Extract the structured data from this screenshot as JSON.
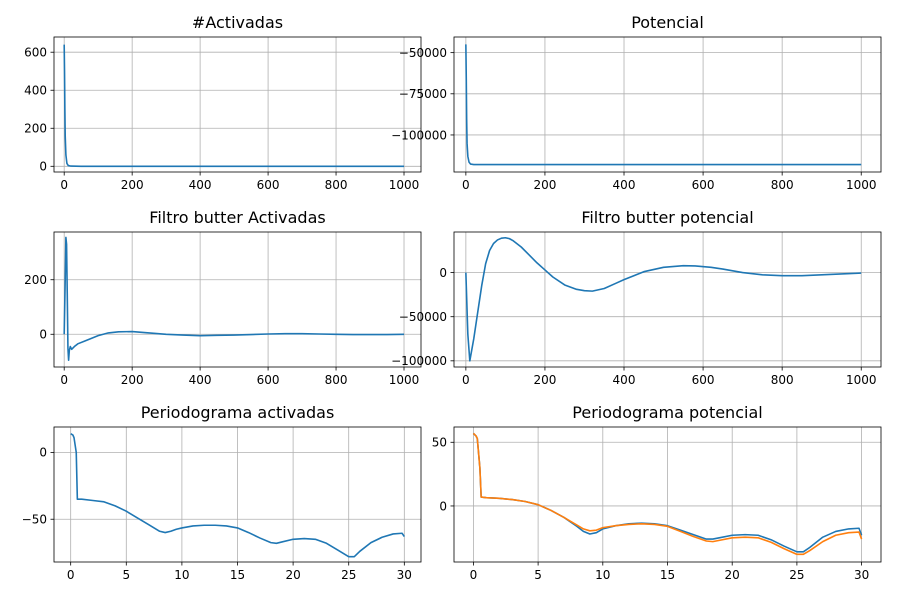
{
  "chart_data": [
    {
      "type": "line",
      "title": "#Activadas",
      "xlim": [
        -30,
        1050
      ],
      "ylim": [
        -30,
        680
      ],
      "xticks": [
        0,
        200,
        400,
        600,
        800,
        1000
      ],
      "xtick_labels": [
        "0",
        "200",
        "400",
        "600",
        "800",
        "1000"
      ],
      "yticks": [
        0,
        200,
        400,
        600
      ],
      "ytick_labels": [
        "0",
        "200",
        "400",
        "600"
      ],
      "grid": true,
      "series": [
        {
          "color": "#1f77b4",
          "x": [
            0,
            1,
            2,
            3,
            5,
            8,
            12,
            20,
            50,
            100,
            1000
          ],
          "y": [
            640,
            500,
            300,
            160,
            60,
            15,
            4,
            1,
            0,
            0,
            0
          ]
        }
      ]
    },
    {
      "type": "line",
      "title": "Potencial",
      "xlim": [
        -30,
        1050
      ],
      "ylim": [
        -122500,
        -40500
      ],
      "xticks": [
        0,
        200,
        400,
        600,
        800,
        1000
      ],
      "xtick_labels": [
        "0",
        "200",
        "400",
        "600",
        "800",
        "1000"
      ],
      "yticks": [
        -50000,
        -75000,
        -100000
      ],
      "ytick_labels": [
        "−50000",
        "−75000",
        "−100000"
      ],
      "grid": true,
      "series": [
        {
          "color": "#1f77b4",
          "x": [
            0,
            1,
            2,
            3,
            5,
            8,
            12,
            20,
            50,
            100,
            1000
          ],
          "y": [
            -45000,
            -65000,
            -90000,
            -105000,
            -113000,
            -116500,
            -117700,
            -118000,
            -118000,
            -118000,
            -118000
          ]
        }
      ]
    },
    {
      "type": "line",
      "title": "Filtro butter Activadas",
      "xlim": [
        -30,
        1050
      ],
      "ylim": [
        -120,
        375
      ],
      "xticks": [
        0,
        200,
        400,
        600,
        800,
        1000
      ],
      "xtick_labels": [
        "0",
        "200",
        "400",
        "600",
        "800",
        "1000"
      ],
      "yticks": [
        0,
        200
      ],
      "ytick_labels": [
        "0",
        "200"
      ],
      "grid": true,
      "series": [
        {
          "color": "#1f77b4",
          "x": [
            0,
            3,
            5,
            7,
            9,
            11,
            13,
            15,
            18,
            22,
            30,
            40,
            60,
            80,
            100,
            130,
            160,
            200,
            250,
            300,
            350,
            400,
            450,
            500,
            550,
            600,
            650,
            700,
            750,
            800,
            850,
            900,
            950,
            1000
          ],
          "y": [
            0,
            200,
            355,
            330,
            150,
            -50,
            -95,
            -60,
            -45,
            -55,
            -45,
            -35,
            -25,
            -15,
            -5,
            5,
            9,
            10,
            5,
            0,
            -3,
            -5,
            -4,
            -3,
            -1,
            1,
            2,
            2,
            1,
            0,
            -1,
            -1,
            -1,
            0
          ]
        }
      ]
    },
    {
      "type": "line",
      "title": "Filtro butter potencial",
      "xlim": [
        -30,
        1050
      ],
      "ylim": [
        -107000,
        46000
      ],
      "xticks": [
        0,
        200,
        400,
        600,
        800,
        1000
      ],
      "xtick_labels": [
        "0",
        "200",
        "400",
        "600",
        "800",
        "1000"
      ],
      "yticks": [
        0,
        -50000,
        -100000
      ],
      "ytick_labels": [
        "0",
        "−50000",
        "−100000"
      ],
      "grid": true,
      "series": [
        {
          "color": "#1f77b4",
          "x": [
            0,
            5,
            10,
            20,
            30,
            40,
            50,
            60,
            70,
            80,
            90,
            100,
            110,
            120,
            140,
            160,
            180,
            200,
            220,
            250,
            280,
            300,
            320,
            350,
            380,
            400,
            450,
            500,
            550,
            580,
            620,
            650,
            700,
            750,
            800,
            850,
            900,
            950,
            1000
          ],
          "y": [
            0,
            -70000,
            -100000,
            -75000,
            -45000,
            -15000,
            10000,
            25000,
            33000,
            37000,
            39000,
            39500,
            38500,
            36000,
            29000,
            20000,
            11000,
            3000,
            -5000,
            -14000,
            -19000,
            -20500,
            -21000,
            -18000,
            -12000,
            -8000,
            1000,
            6000,
            7800,
            7500,
            6000,
            4000,
            0,
            -2500,
            -3500,
            -3500,
            -2500,
            -1500,
            -500
          ]
        }
      ]
    },
    {
      "type": "line",
      "title": "Periodograma activadas",
      "xlim": [
        -1.5,
        31.5
      ],
      "ylim": [
        -82,
        19
      ],
      "xticks": [
        0,
        5,
        10,
        15,
        20,
        25,
        30
      ],
      "xtick_labels": [
        "0",
        "5",
        "10",
        "15",
        "20",
        "25",
        "30"
      ],
      "yticks": [
        0,
        -50
      ],
      "ytick_labels": [
        "0",
        "−50"
      ],
      "grid": true,
      "series": [
        {
          "color": "#1f77b4",
          "x": [
            0,
            0.2,
            0.3,
            0.5,
            0.6,
            1,
            2,
            3,
            4,
            5,
            6,
            7,
            8,
            8.5,
            9,
            9.5,
            10,
            11,
            12,
            13,
            14,
            15,
            16,
            17,
            18,
            18.5,
            19,
            20,
            21,
            22,
            23,
            24,
            25,
            25.5,
            26,
            27,
            28,
            29,
            29.8,
            30
          ],
          "y": [
            14,
            13,
            11,
            0,
            -35,
            -35,
            -36,
            -37,
            -40,
            -44,
            -49,
            -54,
            -59,
            -60,
            -59,
            -57.5,
            -56.5,
            -55,
            -54.5,
            -54.5,
            -55,
            -56.5,
            -60,
            -64,
            -67.5,
            -68,
            -67,
            -65,
            -64.5,
            -65,
            -68,
            -73,
            -78,
            -78,
            -74,
            -67.5,
            -63.5,
            -61,
            -60.5,
            -63
          ]
        }
      ]
    },
    {
      "type": "line",
      "title": "Periodograma potencial",
      "xlim": [
        -1.5,
        31.5
      ],
      "ylim": [
        -44,
        62
      ],
      "xticks": [
        0,
        5,
        10,
        15,
        20,
        25,
        30
      ],
      "xtick_labels": [
        "0",
        "5",
        "10",
        "15",
        "20",
        "25",
        "30"
      ],
      "yticks": [
        50,
        0
      ],
      "ytick_labels": [
        "50",
        "0"
      ],
      "grid": true,
      "series": [
        {
          "color": "#1f77b4",
          "x": [
            0,
            0.2,
            0.3,
            0.5,
            0.6,
            1,
            2,
            3,
            4,
            5,
            6,
            7,
            8,
            8.5,
            9,
            9.5,
            10,
            11,
            12,
            13,
            14,
            15,
            16,
            17,
            18,
            18.5,
            19,
            20,
            21,
            22,
            23,
            24,
            25,
            25.5,
            26,
            27,
            28,
            29,
            29.8,
            30
          ],
          "y": [
            57,
            55,
            53,
            30,
            7,
            6.5,
            6,
            5,
            3.5,
            1,
            -3.5,
            -9,
            -16,
            -20,
            -22,
            -21,
            -18,
            -15.5,
            -14,
            -13.5,
            -14,
            -15.5,
            -19,
            -22.5,
            -26,
            -26,
            -25,
            -23,
            -22.5,
            -23,
            -26.5,
            -31.5,
            -36,
            -36,
            -32.5,
            -24.5,
            -20,
            -18,
            -17.5,
            -23
          ]
        },
        {
          "color": "#ff7f0e",
          "x": [
            0,
            0.2,
            0.3,
            0.5,
            0.6,
            1,
            2,
            3,
            4,
            5,
            6,
            7,
            8,
            8.5,
            9,
            9.5,
            10,
            11,
            12,
            13,
            14,
            15,
            16,
            17,
            18,
            18.5,
            19,
            20,
            21,
            22,
            23,
            24,
            25,
            25.5,
            26,
            27,
            28,
            29,
            29.8,
            30
          ],
          "y": [
            57,
            55,
            53,
            30,
            7,
            6.5,
            6,
            5,
            3.5,
            1,
            -3.5,
            -9,
            -15,
            -18,
            -19.5,
            -19,
            -17,
            -15.5,
            -14.5,
            -14,
            -14.5,
            -16,
            -20,
            -24,
            -27.5,
            -28,
            -27,
            -25,
            -24.5,
            -25,
            -28.5,
            -33.5,
            -38,
            -38,
            -35,
            -28,
            -23,
            -21,
            -20.5,
            -26
          ]
        }
      ]
    }
  ]
}
